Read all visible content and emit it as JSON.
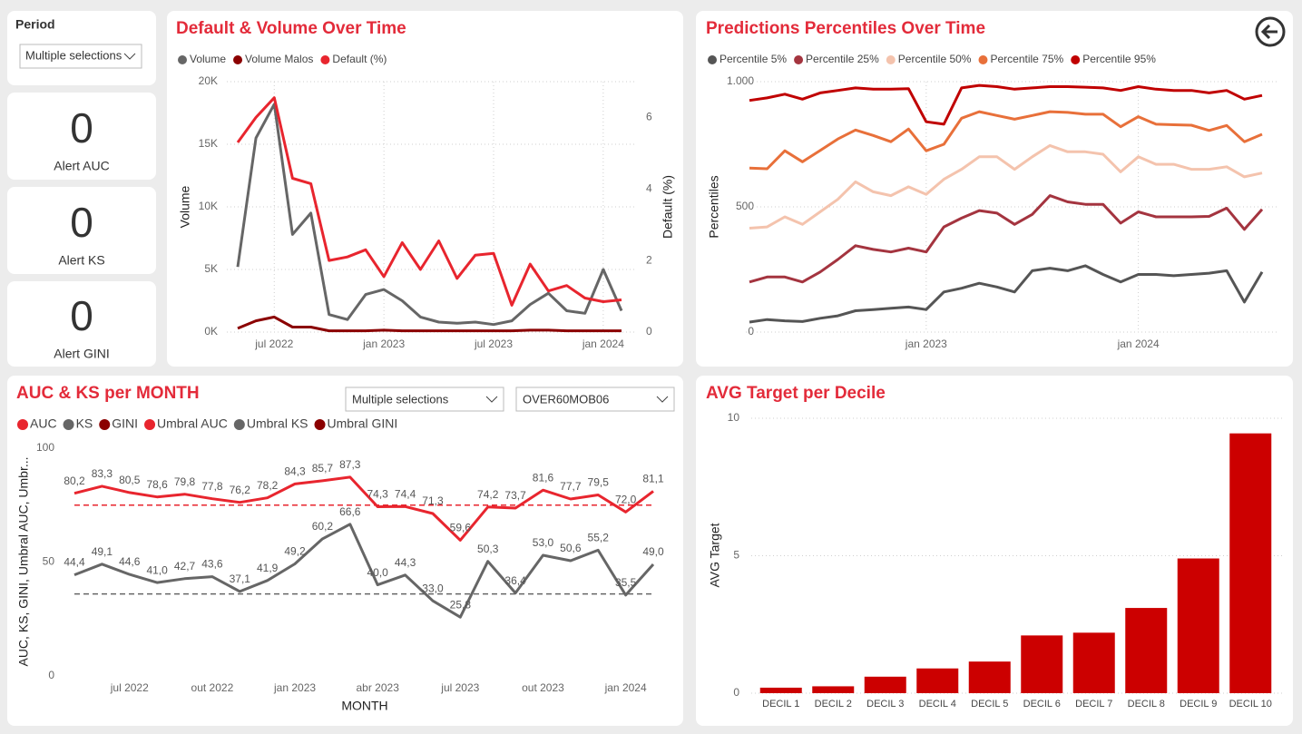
{
  "period_slicer": {
    "label": "Period",
    "selection": "Multiple selections"
  },
  "cards": [
    {
      "value": 0,
      "label": "Alert AUC"
    },
    {
      "value": 0,
      "label": "Alert KS"
    },
    {
      "value": 0,
      "label": "Alert GINI"
    }
  ],
  "chart_data": [
    {
      "type": "line",
      "title": "Default & Volume Over Time",
      "y_label": "Volume",
      "y2_label": "Default (%)",
      "grid": true,
      "x": [
        "2022-05",
        "2022-06",
        "2022-07",
        "2022-08",
        "2022-09",
        "2022-10",
        "2022-11",
        "2022-12",
        "2023-01",
        "2023-02",
        "2023-03",
        "2023-04",
        "2023-05",
        "2023-06",
        "2023-07",
        "2023-08",
        "2023-09",
        "2023-10",
        "2023-11",
        "2023-12",
        "2024-01",
        "2024-02"
      ],
      "xticks": [
        {
          "value": "2022-07",
          "label": "jul 2022"
        },
        {
          "value": "2023-01",
          "label": "jan 2023"
        },
        {
          "value": "2023-07",
          "label": "jul 2023"
        },
        {
          "value": "2024-01",
          "label": "jan 2024"
        }
      ],
      "ylim": [
        0,
        20000
      ],
      "yticks": [
        {
          "value": 0,
          "label": "0K"
        },
        {
          "value": 5000,
          "label": "5K"
        },
        {
          "value": 10000,
          "label": "10K"
        },
        {
          "value": 15000,
          "label": "15K"
        },
        {
          "value": 20000,
          "label": "20K"
        }
      ],
      "y2lim": [
        0,
        7
      ],
      "y2ticks": [
        0,
        2,
        4,
        6
      ],
      "series": [
        {
          "name": "Volume",
          "color": "#666666",
          "values": [
            5200,
            15500,
            18200,
            7800,
            9500,
            1400,
            1000,
            3000,
            3400,
            2500,
            1200,
            800,
            700,
            800,
            600,
            900,
            2200,
            3100,
            1700,
            1500,
            5000,
            1700
          ]
        },
        {
          "name": "Volume Malos",
          "color": "#8b0000",
          "values": [
            300,
            900,
            1200,
            400,
            400,
            100,
            100,
            100,
            150,
            100,
            100,
            100,
            100,
            100,
            100,
            100,
            150,
            150,
            100,
            100,
            100,
            100
          ]
        },
        {
          "name": "Default (%)",
          "color": "#e8252e",
          "axis": "y2",
          "values": [
            5.3,
            6.0,
            6.55,
            4.3,
            4.15,
            2.0,
            2.1,
            2.3,
            1.55,
            2.5,
            1.75,
            2.55,
            1.5,
            2.15,
            2.2,
            0.75,
            1.9,
            1.15,
            1.3,
            0.95,
            0.85,
            0.9
          ]
        }
      ]
    },
    {
      "type": "line",
      "title": "Predictions Percentiles Over Time",
      "y_label": "Percentiles",
      "grid": true,
      "x": [
        "2022-03",
        "2022-04",
        "2022-05",
        "2022-06",
        "2022-07",
        "2022-08",
        "2022-09",
        "2022-10",
        "2022-11",
        "2022-12",
        "2023-01",
        "2023-02",
        "2023-03",
        "2023-04",
        "2023-05",
        "2023-06",
        "2023-07",
        "2023-08",
        "2023-09",
        "2023-10",
        "2023-11",
        "2023-12",
        "2024-01",
        "2024-02",
        "2024-03",
        "2024-04",
        "2024-05",
        "2024-06",
        "2024-07",
        "2024-08"
      ],
      "xticks": [
        {
          "value": "2023-01",
          "label": "jan 2023"
        },
        {
          "value": "2024-01",
          "label": "jan 2024"
        }
      ],
      "ylim": [
        0,
        1000
      ],
      "yticks": [
        0,
        500,
        {
          "value": 1000,
          "label": "1.000"
        }
      ],
      "series": [
        {
          "name": "Percentile 5%",
          "color": "#555555",
          "values": [
            40,
            50,
            45,
            42,
            55,
            65,
            85,
            90,
            95,
            100,
            90,
            160,
            175,
            195,
            180,
            160,
            245,
            255,
            245,
            265,
            230,
            200,
            230,
            230,
            225,
            230,
            235,
            245,
            120,
            240
          ]
        },
        {
          "name": "Percentile 25%",
          "color": "#a4343f",
          "values": [
            200,
            220,
            220,
            200,
            240,
            290,
            345,
            330,
            320,
            335,
            320,
            420,
            455,
            485,
            475,
            430,
            470,
            545,
            520,
            510,
            510,
            435,
            480,
            460,
            460,
            460,
            462,
            495,
            410,
            490
          ]
        },
        {
          "name": "Percentile 50%",
          "color": "#f4c3ad",
          "values": [
            415,
            420,
            460,
            430,
            480,
            530,
            600,
            560,
            545,
            580,
            550,
            610,
            650,
            700,
            700,
            650,
            700,
            745,
            720,
            720,
            710,
            640,
            700,
            670,
            670,
            650,
            650,
            660,
            620,
            635
          ]
        },
        {
          "name": "Percentile 75%",
          "color": "#e8703a",
          "values": [
            655,
            652,
            724,
            680,
            725,
            771,
            807,
            785,
            760,
            811,
            724,
            750,
            854,
            880,
            865,
            850,
            865,
            880,
            877,
            870,
            870,
            820,
            860,
            830,
            828,
            826,
            805,
            825,
            760,
            790
          ]
        },
        {
          "name": "Percentile 95%",
          "color": "#c00000",
          "values": [
            925,
            935,
            950,
            930,
            955,
            965,
            975,
            970,
            970,
            972,
            840,
            830,
            975,
            985,
            980,
            970,
            975,
            980,
            980,
            978,
            975,
            965,
            980,
            970,
            965,
            965,
            955,
            965,
            930,
            945
          ]
        }
      ]
    },
    {
      "type": "line",
      "title": "AUC & KS per MONTH",
      "filters": [
        "Multiple selections",
        "OVER60MOB06"
      ],
      "y_label": "AUC, KS, GINI, Umbral AUC, Umbr...",
      "x_label": "MONTH",
      "grid": false,
      "x": [
        "2022-05",
        "2022-06",
        "2022-07",
        "2022-08",
        "2022-09",
        "2022-10",
        "2022-11",
        "2022-12",
        "2023-01",
        "2023-02",
        "2023-03",
        "2023-04",
        "2023-05",
        "2023-06",
        "2023-07",
        "2023-08",
        "2023-09",
        "2023-10",
        "2023-11",
        "2023-12",
        "2024-01",
        "2024-02"
      ],
      "xticks": [
        {
          "value": "2022-07",
          "label": "jul 2022"
        },
        {
          "value": "2022-10",
          "label": "out 2022"
        },
        {
          "value": "2023-01",
          "label": "jan 2023"
        },
        {
          "value": "2023-04",
          "label": "abr 2023"
        },
        {
          "value": "2023-07",
          "label": "jul 2023"
        },
        {
          "value": "2023-10",
          "label": "out 2023"
        },
        {
          "value": "2024-01",
          "label": "jan 2024"
        }
      ],
      "ylim": [
        0,
        100
      ],
      "yticks": [
        0,
        50,
        100
      ],
      "series": [
        {
          "name": "AUC",
          "color": "#e8252e",
          "values": [
            80.2,
            83.3,
            80.5,
            78.6,
            79.8,
            77.8,
            76.2,
            78.2,
            84.3,
            85.7,
            87.3,
            74.3,
            74.4,
            71.3,
            59.6,
            74.2,
            73.7,
            81.6,
            77.7,
            79.5,
            72.0,
            81.1
          ],
          "value_labels": [
            "80,2",
            "83,3",
            "80,5",
            "78,6",
            "79,8",
            "77,8",
            "76,2",
            "78,2",
            "84,3",
            "85,7",
            "87,3",
            "74,3",
            "74,4",
            "71,3",
            "59,6",
            "74,2",
            "73,7",
            "81,6",
            "77,7",
            "79,5",
            "72,0",
            "81,1"
          ]
        },
        {
          "name": "KS",
          "color": "#666666",
          "values": [
            44.4,
            49.1,
            44.6,
            41.0,
            42.7,
            43.6,
            37.1,
            41.9,
            49.2,
            60.2,
            66.6,
            40.0,
            44.3,
            33.0,
            25.8,
            50.3,
            36.4,
            53.0,
            50.6,
            55.2,
            35.5,
            49.0
          ],
          "value_labels": [
            "44,4",
            "49,1",
            "44,6",
            "41,0",
            "42,7",
            "43,6",
            "37,1",
            "41,9",
            "49,2",
            "60,2",
            "66,6",
            "40,0",
            "44,3",
            "33,0",
            "25,8",
            "50,3",
            "36,4",
            "53,0",
            "50,6",
            "55,2",
            "35,5",
            "49,0"
          ]
        },
        {
          "name": "GINI",
          "color": "#8b0000"
        },
        {
          "name": "Umbral AUC",
          "color": "#e8252e",
          "value": 75,
          "dashed": true
        },
        {
          "name": "Umbral KS",
          "color": "#666666",
          "value": 36,
          "dashed": true
        },
        {
          "name": "Umbral GINI",
          "color": "#8b0000"
        }
      ]
    },
    {
      "type": "bar",
      "title": "AVG Target per Decile",
      "y_label": "AVG Target",
      "grid": true,
      "color": "#cc0000",
      "categories": [
        "DECIL 1",
        "DECIL 2",
        "DECIL 3",
        "DECIL 4",
        "DECIL 5",
        "DECIL 6",
        "DECIL 7",
        "DECIL 8",
        "DECIL 9",
        "DECIL 10"
      ],
      "values": [
        0.2,
        0.25,
        0.6,
        0.9,
        1.15,
        2.1,
        2.2,
        3.1,
        4.9,
        9.45
      ],
      "ylim": [
        0,
        10
      ],
      "yticks": [
        0,
        5,
        10
      ]
    }
  ]
}
